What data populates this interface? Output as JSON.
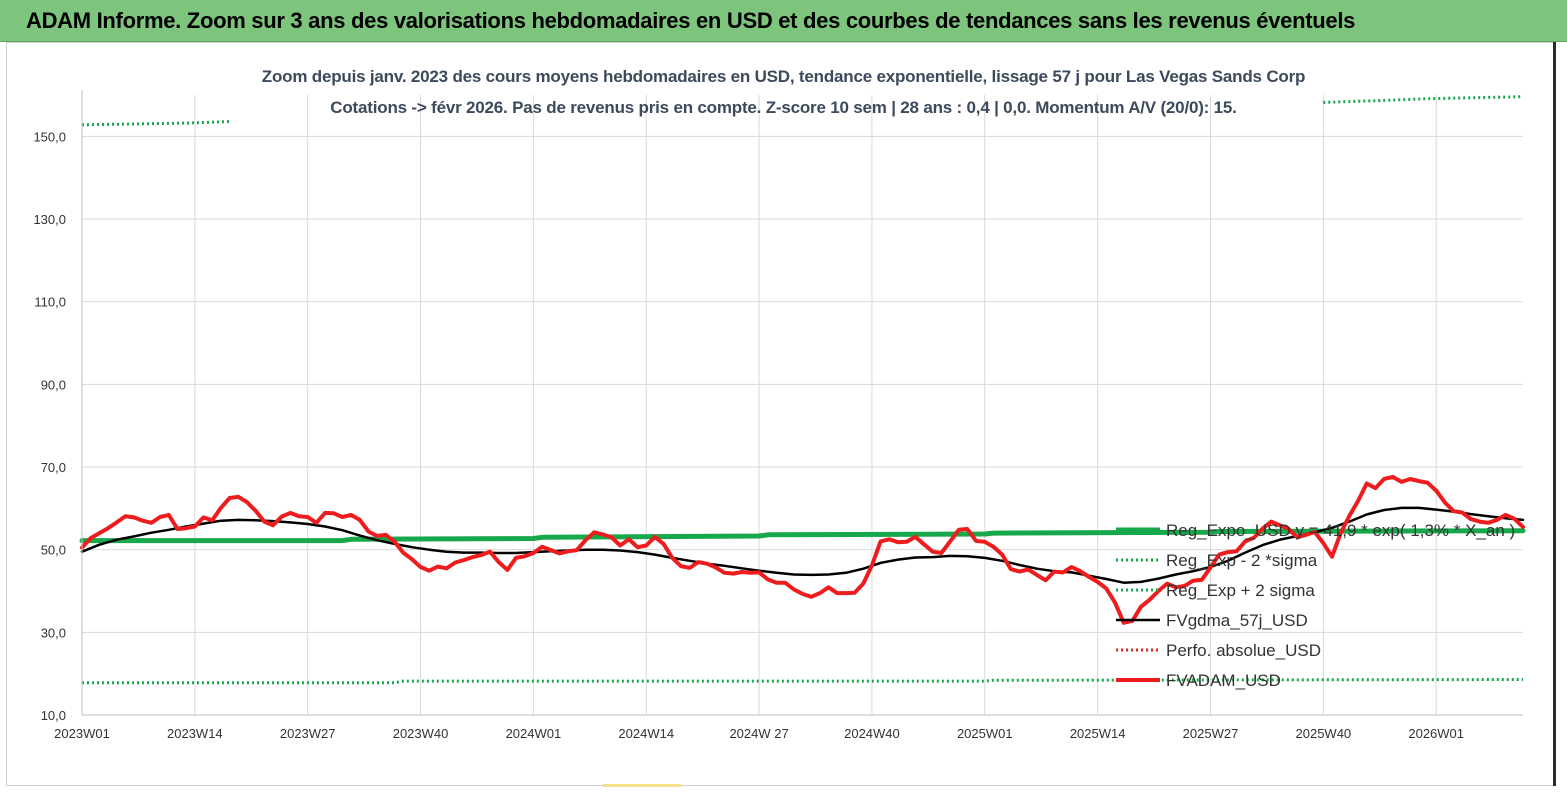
{
  "banner": {
    "title": "ADAM Informe. Zoom sur 3 ans des valorisations hebdomadaires en USD et des courbes de tendances sans les revenus éventuels"
  },
  "chart_data": {
    "type": "line",
    "title": "Zoom depuis janv. 2023 des cours moyens hebdomadaires en USD, tendance exponentielle, lissage 57 j pour Las Vegas Sands Corp",
    "subtitle": "Cotations -> févr 2026.  Pas de revenus pris en compte. Z-score 10 sem  |  28 ans : 0,4  |  0,0. Momentum A/V (20/0): 15.",
    "xlabel": "",
    "ylabel": "",
    "ylim": [
      10,
      160
    ],
    "yticks": [
      "10,0",
      "30,0",
      "50,0",
      "70,0",
      "90,0",
      "110,0",
      "130,0",
      "150,0"
    ],
    "ytick_values": [
      10,
      30,
      50,
      70,
      90,
      110,
      130,
      150
    ],
    "x_range": [
      0,
      166
    ],
    "x_tick_positions": [
      0,
      13,
      26,
      39,
      52,
      65,
      78,
      91,
      104,
      117,
      130,
      143,
      156
    ],
    "x_tick_labels": [
      "2023W01",
      "2023W14",
      "2023W27",
      "2023W40",
      "2024W01",
      "2024W14",
      "2024W 27",
      "2024W40",
      "2025W01",
      "2025W14",
      "2025W27",
      "2025W40",
      "2026W01"
    ],
    "grid": true,
    "legend_position": "bottom-right",
    "series": [
      {
        "name": "Reg_Expo_USD  y = 41,9 * exp( 1,3% *  X_an )",
        "color": "#17a84b",
        "style": "solid-thick",
        "points": [
          [
            0,
            52.2
          ],
          [
            30,
            52.2
          ],
          [
            31,
            52.5
          ],
          [
            52,
            52.7
          ],
          [
            53,
            53.0
          ],
          [
            78,
            53.3
          ],
          [
            79,
            53.6
          ],
          [
            104,
            53.8
          ],
          [
            105,
            54.0
          ],
          [
            130,
            54.2
          ],
          [
            131,
            54.4
          ],
          [
            166,
            54.6
          ]
        ]
      },
      {
        "name": "Reg_Exp - 2 *sigma",
        "color": "#17a84b",
        "style": "dotted",
        "points": [
          [
            0,
            17.8
          ],
          [
            36,
            17.8
          ],
          [
            37,
            18.2
          ],
          [
            104,
            18.2
          ],
          [
            105,
            18.4
          ],
          [
            166,
            18.6
          ]
        ]
      },
      {
        "name": "Reg_Exp + 2 sigma",
        "color": "#17a84b",
        "style": "dotted",
        "segments": [
          [
            [
              0,
              152.8
            ],
            [
              12,
              153.2
            ],
            [
              17,
              153.6
            ]
          ],
          [
            [
              143,
              158.2
            ],
            [
              150,
              158.7
            ],
            [
              155,
              159.1
            ],
            [
              166,
              159.6
            ]
          ]
        ]
      },
      {
        "name": "FVgdma_57j_USD",
        "color": "#000000",
        "style": "solid",
        "points": [
          [
            0,
            49.5
          ],
          [
            2,
            51.2
          ],
          [
            4,
            52.4
          ],
          [
            6,
            53.2
          ],
          [
            8,
            54.1
          ],
          [
            10,
            54.8
          ],
          [
            12,
            55.6
          ],
          [
            14,
            56.3
          ],
          [
            16,
            57.0
          ],
          [
            18,
            57.2
          ],
          [
            20,
            57.1
          ],
          [
            22,
            56.9
          ],
          [
            24,
            56.6
          ],
          [
            26,
            56.2
          ],
          [
            28,
            55.6
          ],
          [
            30,
            54.7
          ],
          [
            32,
            53.4
          ],
          [
            34,
            52.3
          ],
          [
            36,
            51.4
          ],
          [
            38,
            50.6
          ],
          [
            40,
            50.0
          ],
          [
            42,
            49.5
          ],
          [
            44,
            49.3
          ],
          [
            46,
            49.3
          ],
          [
            48,
            49.2
          ],
          [
            50,
            49.2
          ],
          [
            52,
            49.4
          ],
          [
            54,
            49.6
          ],
          [
            56,
            49.8
          ],
          [
            58,
            50.0
          ],
          [
            60,
            50.0
          ],
          [
            62,
            49.8
          ],
          [
            64,
            49.4
          ],
          [
            66,
            48.8
          ],
          [
            68,
            48.0
          ],
          [
            70,
            47.3
          ],
          [
            72,
            46.6
          ],
          [
            74,
            46.1
          ],
          [
            76,
            45.5
          ],
          [
            78,
            44.9
          ],
          [
            80,
            44.4
          ],
          [
            82,
            44.0
          ],
          [
            84,
            43.9
          ],
          [
            86,
            44.0
          ],
          [
            88,
            44.4
          ],
          [
            90,
            45.4
          ],
          [
            92,
            46.8
          ],
          [
            94,
            47.6
          ],
          [
            96,
            48.1
          ],
          [
            98,
            48.2
          ],
          [
            100,
            48.5
          ],
          [
            102,
            48.4
          ],
          [
            104,
            48.0
          ],
          [
            106,
            47.3
          ],
          [
            108,
            46.3
          ],
          [
            110,
            45.4
          ],
          [
            112,
            44.8
          ],
          [
            114,
            44.5
          ],
          [
            116,
            43.7
          ],
          [
            118,
            42.9
          ],
          [
            120,
            42.0
          ],
          [
            122,
            42.2
          ],
          [
            124,
            43.0
          ],
          [
            126,
            44.0
          ],
          [
            128,
            44.8
          ],
          [
            130,
            45.8
          ],
          [
            132,
            47.3
          ],
          [
            134,
            49.3
          ],
          [
            136,
            51.1
          ],
          [
            138,
            52.4
          ],
          [
            140,
            53.3
          ],
          [
            142,
            54.2
          ],
          [
            144,
            55.3
          ],
          [
            146,
            56.8
          ],
          [
            148,
            58.5
          ],
          [
            150,
            59.6
          ],
          [
            152,
            60.1
          ],
          [
            154,
            60.1
          ],
          [
            156,
            59.7
          ],
          [
            158,
            59.2
          ],
          [
            160,
            58.6
          ],
          [
            162,
            58.1
          ],
          [
            164,
            57.6
          ],
          [
            166,
            57.2
          ]
        ]
      },
      {
        "name": "Perfo. absolue_USD",
        "color": "#e0281e",
        "style": "dotted",
        "points": []
      },
      {
        "name": "FVADAM_USD",
        "color": "#ee1c1c",
        "style": "solid-thick",
        "points": [
          [
            0,
            50.5
          ],
          [
            1,
            52.8
          ],
          [
            2,
            54.0
          ],
          [
            3,
            55.2
          ],
          [
            4,
            56.6
          ],
          [
            5,
            58.1
          ],
          [
            6,
            57.8
          ],
          [
            7,
            57.0
          ],
          [
            8,
            56.5
          ],
          [
            9,
            57.9
          ],
          [
            10,
            58.4
          ],
          [
            11,
            55.0
          ],
          [
            12,
            55.2
          ],
          [
            13,
            55.6
          ],
          [
            14,
            57.8
          ],
          [
            15,
            57.1
          ],
          [
            16,
            60.1
          ],
          [
            17,
            62.5
          ],
          [
            18,
            62.8
          ],
          [
            19,
            61.5
          ],
          [
            20,
            59.4
          ],
          [
            21,
            56.8
          ],
          [
            22,
            55.9
          ],
          [
            23,
            58.0
          ],
          [
            24,
            58.9
          ],
          [
            25,
            58.1
          ],
          [
            26,
            57.9
          ],
          [
            27,
            56.5
          ],
          [
            28,
            58.9
          ],
          [
            29,
            58.8
          ],
          [
            30,
            57.9
          ],
          [
            31,
            58.4
          ],
          [
            32,
            57.2
          ],
          [
            33,
            54.4
          ],
          [
            34,
            53.3
          ],
          [
            35,
            53.6
          ],
          [
            36,
            51.9
          ],
          [
            37,
            49.3
          ],
          [
            38,
            47.7
          ],
          [
            39,
            45.8
          ],
          [
            40,
            44.9
          ],
          [
            41,
            45.9
          ],
          [
            42,
            45.5
          ],
          [
            43,
            46.9
          ],
          [
            44,
            47.5
          ],
          [
            45,
            48.2
          ],
          [
            46,
            48.7
          ],
          [
            47,
            49.5
          ],
          [
            48,
            47.0
          ],
          [
            49,
            45.1
          ],
          [
            50,
            48.0
          ],
          [
            51,
            48.4
          ],
          [
            52,
            49.2
          ],
          [
            53,
            50.7
          ],
          [
            54,
            49.9
          ],
          [
            55,
            49.1
          ],
          [
            56,
            49.6
          ],
          [
            57,
            49.9
          ],
          [
            58,
            52.3
          ],
          [
            59,
            54.2
          ],
          [
            60,
            53.7
          ],
          [
            61,
            53.0
          ],
          [
            62,
            51.0
          ],
          [
            63,
            52.5
          ],
          [
            64,
            50.6
          ],
          [
            65,
            51.0
          ],
          [
            66,
            53.1
          ],
          [
            67,
            51.4
          ],
          [
            68,
            48.0
          ],
          [
            69,
            46.0
          ],
          [
            70,
            45.6
          ],
          [
            71,
            47.0
          ],
          [
            72,
            46.6
          ],
          [
            73,
            45.7
          ],
          [
            74,
            44.4
          ],
          [
            75,
            44.2
          ],
          [
            76,
            44.6
          ],
          [
            77,
            44.4
          ],
          [
            78,
            44.5
          ],
          [
            79,
            42.8
          ],
          [
            80,
            42.0
          ],
          [
            81,
            42.0
          ],
          [
            82,
            40.4
          ],
          [
            83,
            39.3
          ],
          [
            84,
            38.6
          ],
          [
            85,
            39.5
          ],
          [
            86,
            40.9
          ],
          [
            87,
            39.5
          ],
          [
            88,
            39.5
          ],
          [
            89,
            39.6
          ],
          [
            90,
            41.8
          ],
          [
            91,
            46.2
          ],
          [
            92,
            52.0
          ],
          [
            93,
            52.5
          ],
          [
            94,
            51.8
          ],
          [
            95,
            51.9
          ],
          [
            96,
            53.1
          ],
          [
            97,
            51.3
          ],
          [
            98,
            49.5
          ],
          [
            99,
            49.2
          ],
          [
            100,
            52.0
          ],
          [
            101,
            54.8
          ],
          [
            102,
            55.0
          ],
          [
            103,
            52.1
          ],
          [
            104,
            51.9
          ],
          [
            105,
            50.7
          ],
          [
            106,
            48.8
          ],
          [
            107,
            45.3
          ],
          [
            108,
            44.7
          ],
          [
            109,
            45.2
          ],
          [
            110,
            43.9
          ],
          [
            111,
            42.6
          ],
          [
            112,
            44.7
          ],
          [
            113,
            44.5
          ],
          [
            114,
            45.8
          ],
          [
            115,
            44.8
          ],
          [
            116,
            43.4
          ],
          [
            117,
            42.2
          ],
          [
            118,
            40.6
          ],
          [
            119,
            37.2
          ],
          [
            120,
            32.3
          ],
          [
            121,
            32.8
          ],
          [
            122,
            36.2
          ],
          [
            123,
            37.9
          ],
          [
            124,
            40.0
          ],
          [
            125,
            41.8
          ],
          [
            126,
            40.9
          ],
          [
            127,
            41.2
          ],
          [
            128,
            42.5
          ],
          [
            129,
            42.7
          ],
          [
            130,
            45.7
          ],
          [
            131,
            48.8
          ],
          [
            132,
            49.4
          ],
          [
            133,
            49.6
          ],
          [
            134,
            52.0
          ],
          [
            135,
            52.9
          ],
          [
            136,
            55.1
          ],
          [
            137,
            56.8
          ],
          [
            138,
            55.9
          ],
          [
            139,
            55.0
          ],
          [
            140,
            53.0
          ],
          [
            141,
            53.6
          ],
          [
            142,
            54.3
          ],
          [
            143,
            51.6
          ],
          [
            144,
            48.3
          ],
          [
            145,
            54.0
          ],
          [
            146,
            58.2
          ],
          [
            147,
            61.8
          ],
          [
            148,
            66.0
          ],
          [
            149,
            64.9
          ],
          [
            150,
            67.1
          ],
          [
            151,
            67.6
          ],
          [
            152,
            66.4
          ],
          [
            153,
            67.1
          ],
          [
            154,
            66.6
          ],
          [
            155,
            66.2
          ],
          [
            156,
            64.3
          ],
          [
            157,
            61.4
          ],
          [
            158,
            59.3
          ],
          [
            159,
            59.0
          ],
          [
            160,
            57.4
          ],
          [
            161,
            56.8
          ],
          [
            162,
            56.5
          ],
          [
            163,
            57.2
          ],
          [
            164,
            58.4
          ],
          [
            165,
            57.5
          ],
          [
            166,
            55.5
          ]
        ]
      }
    ]
  }
}
